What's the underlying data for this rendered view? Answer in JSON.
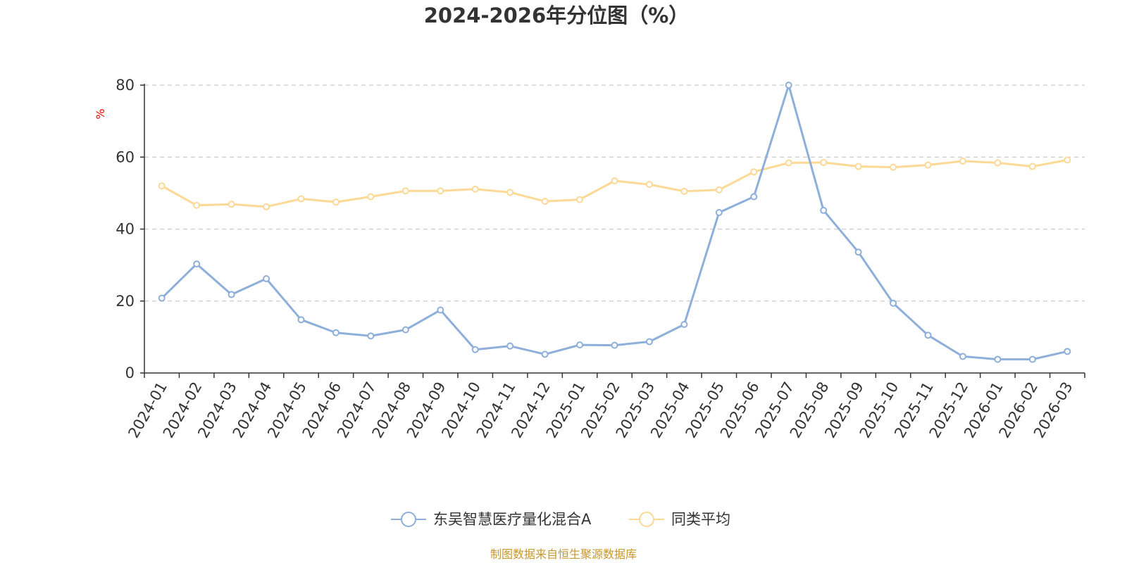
{
  "chart_data": {
    "type": "line",
    "title": "2024-2026年分位图（%）",
    "y_unit": "%",
    "ylim": [
      0,
      80
    ],
    "y_ticks": [
      0,
      20,
      40,
      60,
      80
    ],
    "grid": true,
    "legend_position": "bottom-center",
    "categories": [
      "2024-01",
      "2024-02",
      "2024-03",
      "2024-04",
      "2024-05",
      "2024-06",
      "2024-07",
      "2024-08",
      "2024-09",
      "2024-10",
      "2024-11",
      "2024-12",
      "2025-01",
      "2025-02",
      "2025-03",
      "2025-04",
      "2025-05",
      "2025-06",
      "2025-07",
      "2025-08",
      "2025-09",
      "2025-10",
      "2025-11",
      "2025-12",
      "2026-01",
      "2026-02",
      "2026-03"
    ],
    "series": [
      {
        "name": "东吴智慧医疗量化混合A",
        "color": "#8eafd9",
        "values": [
          20.8,
          30.3,
          21.8,
          26.2,
          14.8,
          11.2,
          10.3,
          12.0,
          17.5,
          6.5,
          7.5,
          5.2,
          7.8,
          7.7,
          8.7,
          13.5,
          44.6,
          49.0,
          80.0,
          45.2,
          33.6,
          19.4,
          10.5,
          4.6,
          3.8,
          3.8,
          6.0
        ]
      },
      {
        "name": "同类平均",
        "color": "#fcd995",
        "values": [
          52.0,
          46.6,
          46.9,
          46.2,
          48.4,
          47.5,
          49.0,
          50.6,
          50.6,
          51.1,
          50.2,
          47.7,
          48.2,
          53.4,
          52.4,
          50.5,
          50.9,
          55.9,
          58.4,
          58.5,
          57.4,
          57.2,
          57.8,
          58.9,
          58.4,
          57.4,
          59.2
        ]
      }
    ],
    "source": "制图数据来自恒生聚源数据库"
  }
}
